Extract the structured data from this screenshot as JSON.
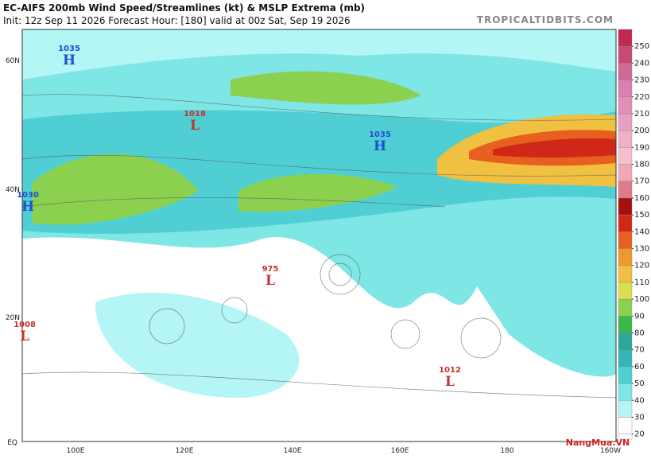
{
  "header": {
    "title": "EC-AIFS 200mb Wind Speed/Streamlines (kt) & MSLP Extrema (mb)",
    "subtitle": "Init: 12z Sep 11 2026   Forecast Hour: [180]   valid at 00z Sat, Sep 19 2026",
    "source": "TROPICALTIDBITS.COM"
  },
  "map": {
    "lat_labels": [
      "60N",
      "40N",
      "20N",
      "EQ"
    ],
    "lon_labels": [
      "100E",
      "120E",
      "140E",
      "160E",
      "180",
      "160W"
    ],
    "pressure_centers": [
      {
        "value": 1035,
        "letter": "H"
      },
      {
        "value": 1018,
        "letter": "L"
      },
      {
        "value": 1035,
        "letter": "H"
      },
      {
        "value": 1030,
        "letter": "H"
      },
      {
        "value": 975,
        "letter": "L"
      },
      {
        "value": 1008,
        "letter": "L"
      },
      {
        "value": 1012,
        "letter": "L"
      }
    ]
  },
  "colorbar": {
    "ticks": [
      20,
      30,
      40,
      50,
      60,
      70,
      80,
      90,
      100,
      110,
      120,
      130,
      140,
      150,
      160,
      170,
      180,
      190,
      200,
      210,
      220,
      230,
      240,
      250
    ],
    "colors": [
      "#ffffff",
      "#b4f5f5",
      "#7fe6e6",
      "#4fcfd3",
      "#35b5b8",
      "#2aa89a",
      "#3cb84a",
      "#8cd050",
      "#d8e050",
      "#f0c040",
      "#f09830",
      "#e86020",
      "#d02818",
      "#a81010",
      "#e07a8a",
      "#f0a8b8",
      "#f5c0cc",
      "#f0b0c8",
      "#e8a0c0",
      "#e090b8",
      "#d880b0",
      "#d06898",
      "#c84878",
      "#c02850"
    ]
  },
  "watermark": "NangMua.VN"
}
